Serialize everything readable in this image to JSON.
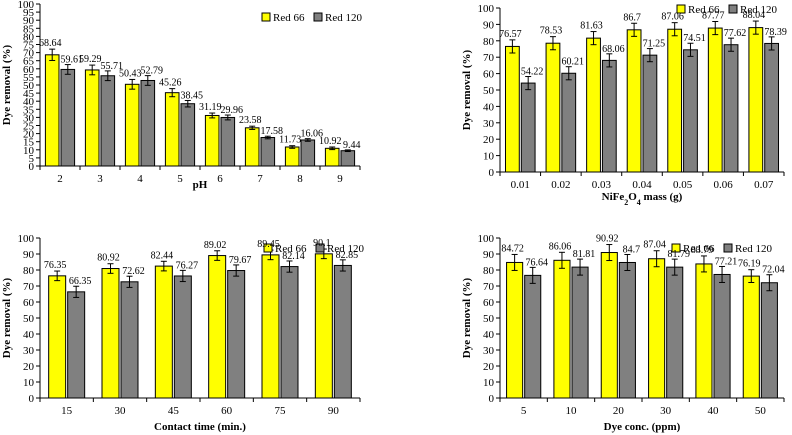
{
  "colors": {
    "series1": "#ffff00",
    "series2": "#808080",
    "stroke": "#000000",
    "background": "#ffffff"
  },
  "chart_data": [
    {
      "type": "bar",
      "id": "ph",
      "title": "",
      "xlabel": "pH",
      "ylabel": "Dye removal (%)",
      "ylim": [
        0,
        100
      ],
      "ytick_step": 5,
      "yticks": [
        "0",
        "5",
        "10",
        "15",
        "20",
        "25",
        "30",
        "35",
        "40",
        "45",
        "50",
        "55",
        "60",
        "65",
        "70",
        "75",
        "80",
        "85",
        "90",
        "95",
        "100"
      ],
      "categories": [
        "2",
        "3",
        "4",
        "5",
        "6",
        "7",
        "8",
        "9"
      ],
      "legend_position": "top-right",
      "series": [
        {
          "name": "Red 66",
          "values": [
            68.64,
            59.29,
            50.43,
            45.26,
            31.19,
            23.58,
            11.73,
            10.92
          ],
          "labels": [
            "68.64",
            "59.29",
            "50.43",
            "45.26",
            "31.19",
            "23.58",
            "11.73",
            "10.92"
          ],
          "errors": [
            3.5,
            3,
            3,
            2.5,
            1.5,
            1,
            0.8,
            0.8
          ]
        },
        {
          "name": "Red 120",
          "values": [
            59.61,
            55.71,
            52.79,
            38.45,
            29.96,
            17.58,
            16.06,
            9.44
          ],
          "labels": [
            "59.61",
            "55.71",
            "52.79",
            "38.45",
            "29.96",
            "17.58",
            "16.06",
            "9.44"
          ],
          "errors": [
            3,
            3,
            3,
            2,
            1.5,
            0.8,
            0.8,
            0.5
          ]
        }
      ]
    },
    {
      "type": "bar",
      "id": "mass",
      "title": "",
      "xlabel": "NiFe2O4 mass (g)",
      "xlabel_parts": {
        "pre": "NiFe",
        "sub1": "2",
        "mid": "O",
        "sub2": "4",
        "post": " mass (g)"
      },
      "ylabel": "Dye removal (%)",
      "ylim": [
        0,
        100
      ],
      "ytick_step": 10,
      "yticks": [
        "0",
        "10",
        "20",
        "30",
        "40",
        "50",
        "60",
        "70",
        "80",
        "90",
        "100"
      ],
      "categories": [
        "0.01",
        "0.02",
        "0.03",
        "0.04",
        "0.05",
        "0.06",
        "0.07"
      ],
      "legend_position": "top-right",
      "series": [
        {
          "name": "Red 66",
          "values": [
            76.57,
            78.53,
            81.63,
            86.7,
            87.06,
            87.77,
            88.04
          ],
          "labels": [
            "76.57",
            "78.53",
            "81.63",
            "86.7",
            "87.06",
            "87.77",
            "88.04"
          ],
          "errors": [
            4,
            4,
            4,
            4,
            4,
            4,
            4
          ]
        },
        {
          "name": "Red 120",
          "values": [
            54.22,
            60.21,
            68.06,
            71.25,
            74.51,
            77.62,
            78.39
          ],
          "labels": [
            "54.22",
            "60.21",
            "68.06",
            "71.25",
            "74.51",
            "77.62",
            "78.39"
          ],
          "errors": [
            4,
            4,
            4,
            4,
            4,
            4,
            4
          ]
        }
      ]
    },
    {
      "type": "bar",
      "id": "contact",
      "title": "",
      "xlabel": "Contact time (min.)",
      "ylabel": "Dye removal (%)",
      "ylim": [
        0,
        100
      ],
      "ytick_step": 10,
      "yticks": [
        "0",
        "10",
        "20",
        "30",
        "40",
        "50",
        "60",
        "70",
        "80",
        "90",
        "100"
      ],
      "categories": [
        "15",
        "30",
        "45",
        "60",
        "75",
        "90"
      ],
      "legend_position": "top-right",
      "series": [
        {
          "name": "Red 66",
          "values": [
            76.35,
            80.92,
            82.44,
            89.02,
            89.45,
            90.1
          ],
          "labels": [
            "76.35",
            "80.92",
            "82.44",
            "89.02",
            "89.45",
            "90.1"
          ],
          "errors": [
            3,
            3,
            3,
            3,
            3,
            3
          ]
        },
        {
          "name": "Red 120",
          "values": [
            66.35,
            72.62,
            76.27,
            79.67,
            82.14,
            82.85
          ],
          "labels": [
            "66.35",
            "72.62",
            "76.27",
            "79.67",
            "82.14",
            "82.85"
          ],
          "errors": [
            3.5,
            3.5,
            3.5,
            3.5,
            3.5,
            3.5
          ]
        }
      ]
    },
    {
      "type": "bar",
      "id": "conc",
      "title": "",
      "xlabel": "Dye conc. (ppm)",
      "ylabel": "Dye removal (%)",
      "ylim": [
        0,
        100
      ],
      "ytick_step": 10,
      "yticks": [
        "0",
        "10",
        "20",
        "30",
        "40",
        "50",
        "60",
        "70",
        "80",
        "90",
        "100"
      ],
      "categories": [
        "5",
        "10",
        "20",
        "30",
        "40",
        "50"
      ],
      "legend_position": "top-right",
      "series": [
        {
          "name": "Red 66",
          "values": [
            84.72,
            86.06,
            90.92,
            87.04,
            83.79,
            76.19
          ],
          "labels": [
            "84.72",
            "86.06",
            "90.92",
            "87.04",
            "83.79",
            "76.19"
          ],
          "errors": [
            5,
            5,
            5,
            5,
            5,
            4
          ]
        },
        {
          "name": "Red 120",
          "values": [
            76.64,
            81.81,
            84.7,
            81.79,
            77.21,
            72.04
          ],
          "labels": [
            "76.64",
            "81.81",
            "84.7",
            "81.79",
            "77.21",
            "72.04"
          ],
          "errors": [
            5,
            5,
            5,
            5,
            5,
            5
          ]
        }
      ]
    }
  ]
}
